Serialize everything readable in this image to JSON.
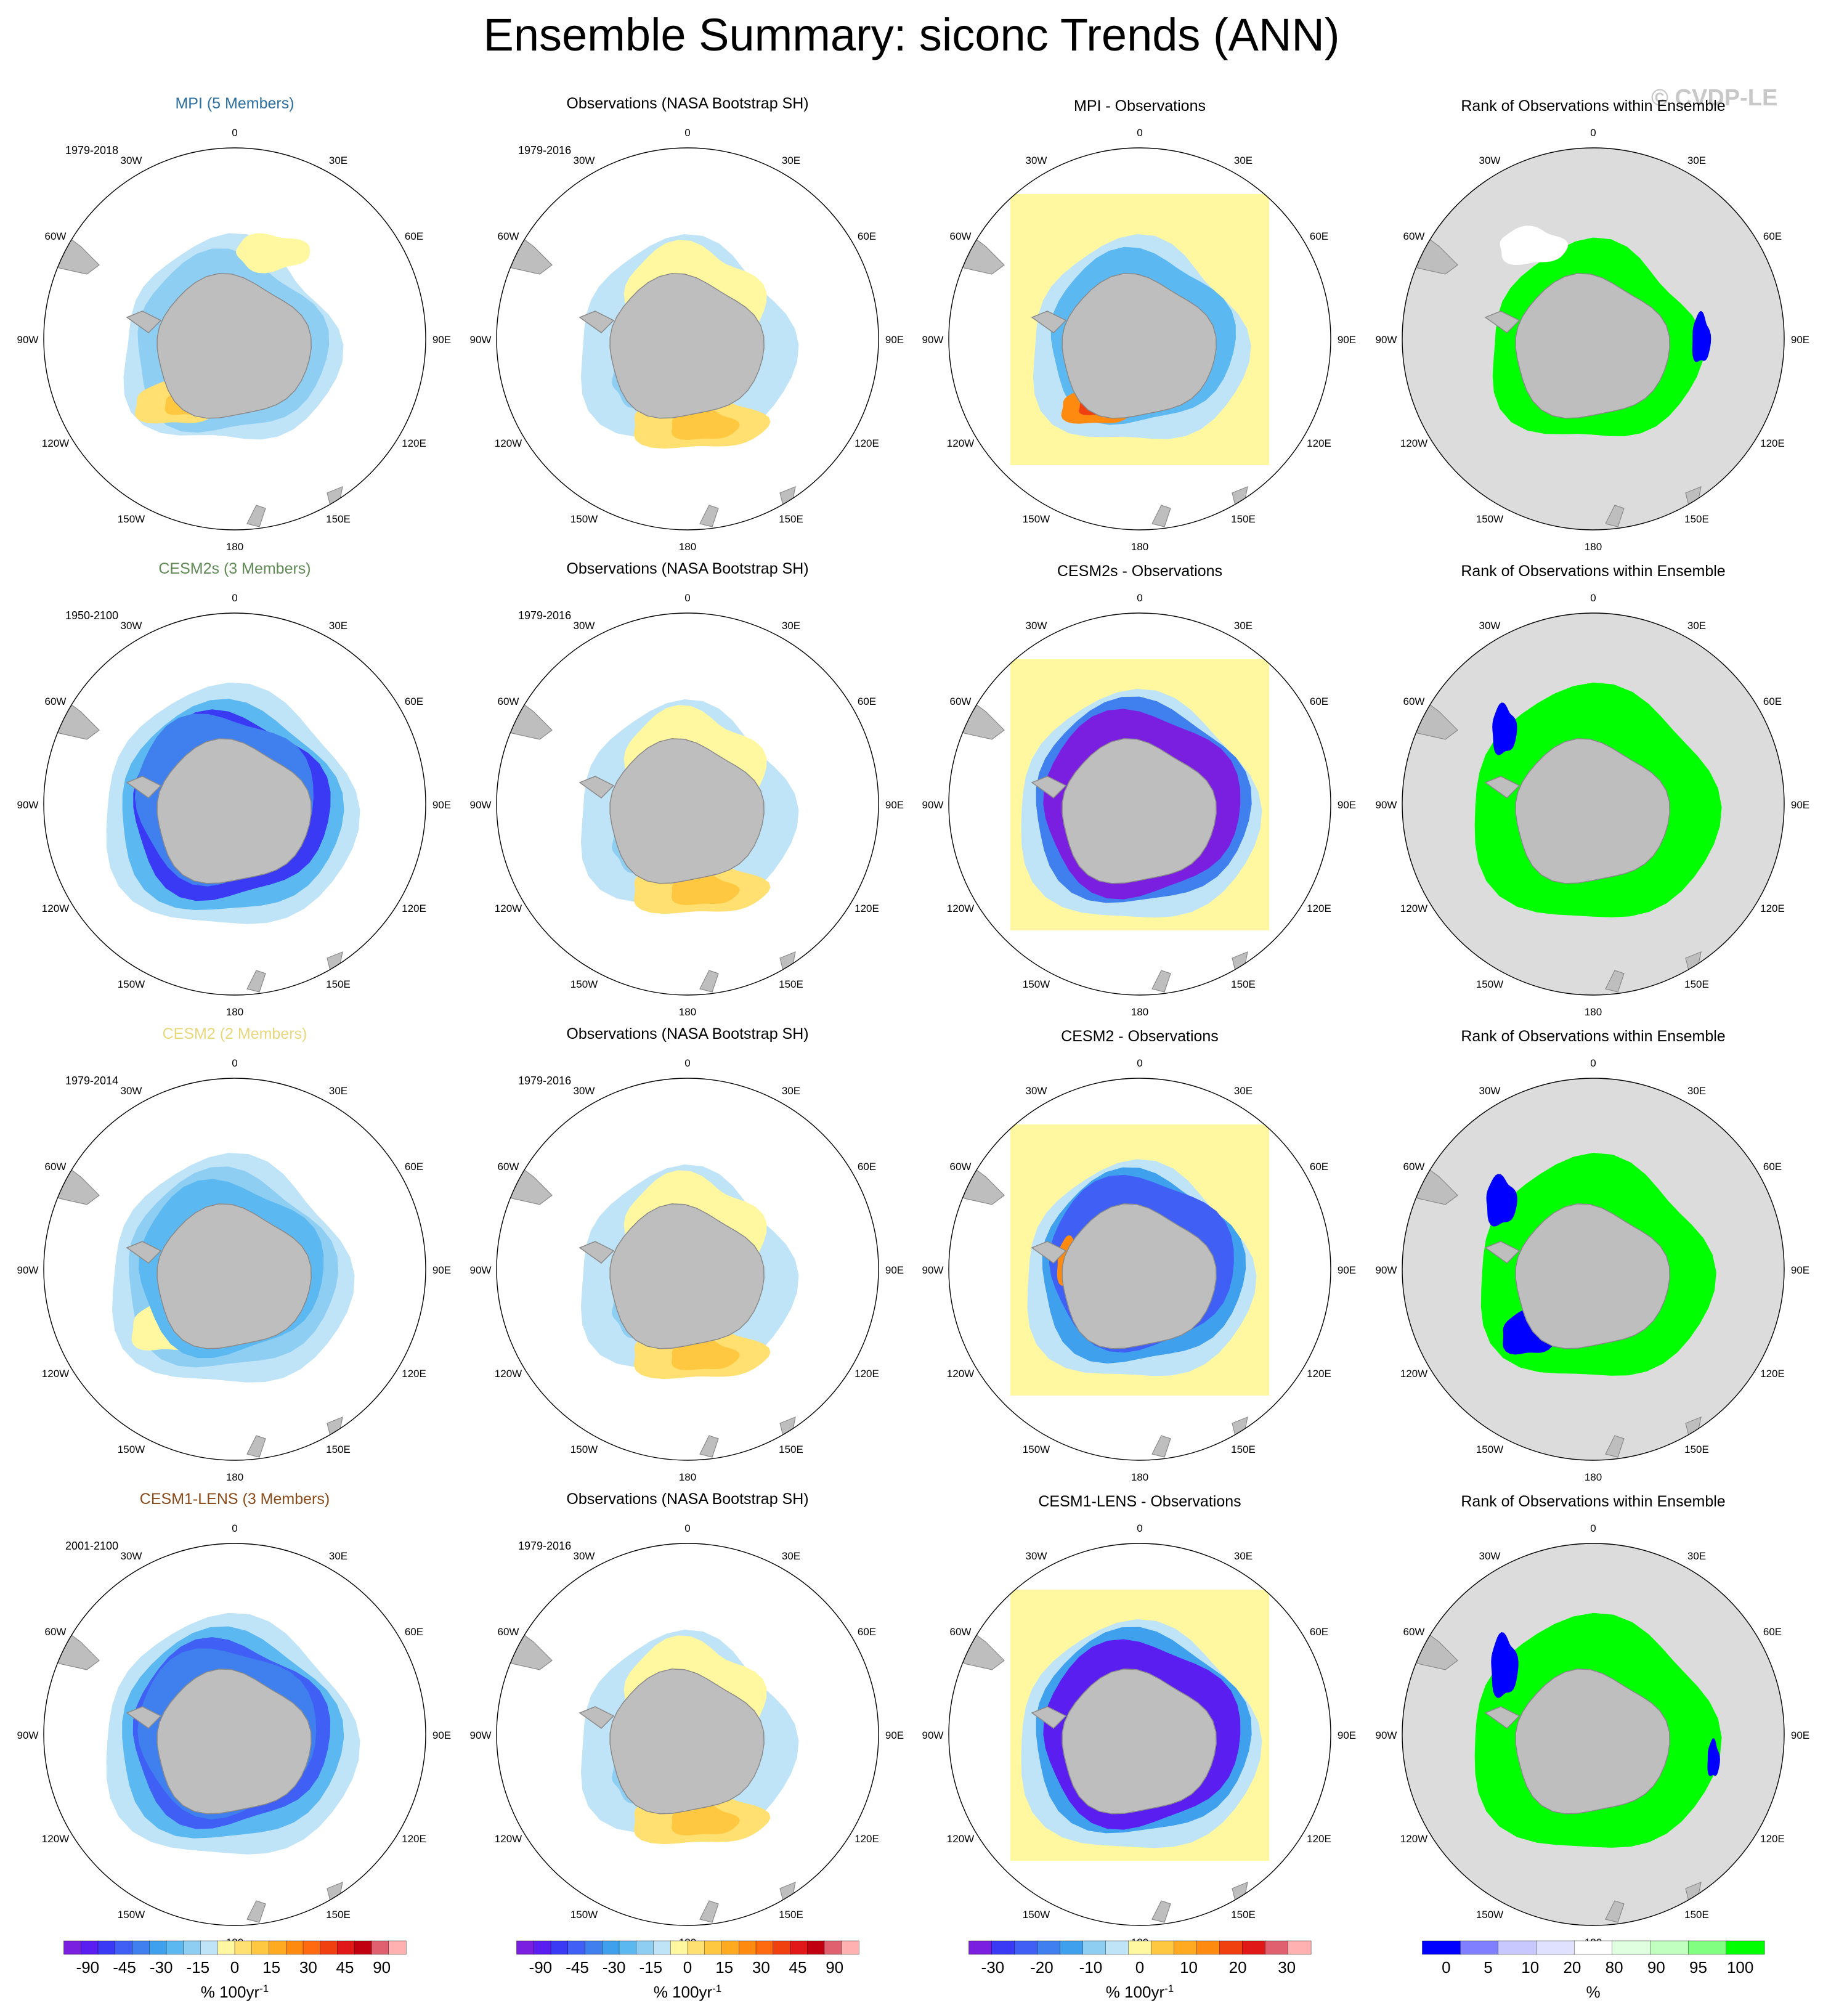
{
  "title": "Ensemble Summary: siconc Trends (ANN)",
  "watermark": "© CVDP-LE",
  "colors": {
    "land": "#bebebe",
    "rank_background": "#dcdcdc",
    "mpi_title": "#2b6fa3",
    "cesm2s_title": "#5f8a55",
    "cesm2_title": "#e8d77c",
    "cesm1_title": "#8a4a1a"
  },
  "chart_data": {
    "type": "heatmap",
    "map_projection": "south polar stereographic",
    "longitude_labels": [
      "0",
      "30E",
      "60E",
      "90E",
      "120E",
      "150E",
      "180",
      "150W",
      "120W",
      "90W",
      "60W",
      "30W"
    ],
    "rows": [
      {
        "model_title": "MPI (5 Members)",
        "model_title_color": "#2b6fa3",
        "model_period": "1979-2018",
        "obs_title": "Observations (NASA Bootstrap SH)",
        "obs_period": "1979-2016",
        "diff_title": "MPI - Observations",
        "rank_title": "Rank of Observations within Ensemble",
        "model_pattern": "mpi",
        "diff_pattern": "mpi",
        "rank_pattern": "mpi"
      },
      {
        "model_title": "CESM2s (3 Members)",
        "model_title_color": "#5f8a55",
        "model_period": "1950-2100",
        "obs_title": "Observations (NASA Bootstrap SH)",
        "obs_period": "1979-2016",
        "diff_title": "CESM2s - Observations",
        "rank_title": "Rank of Observations within Ensemble",
        "model_pattern": "cesm2s",
        "diff_pattern": "cesm2s",
        "rank_pattern": "cesm2s"
      },
      {
        "model_title": "CESM2 (2 Members)",
        "model_title_color": "#e8d77c",
        "model_period": "1979-2014",
        "obs_title": "Observations (NASA Bootstrap SH)",
        "obs_period": "1979-2016",
        "diff_title": "CESM2 - Observations",
        "rank_title": "Rank of Observations within Ensemble",
        "model_pattern": "cesm2",
        "diff_pattern": "cesm2",
        "rank_pattern": "cesm2"
      },
      {
        "model_title": "CESM1-LENS (3 Members)",
        "model_title_color": "#8a4a1a",
        "model_period": "2001-2100",
        "obs_title": "Observations (NASA Bootstrap SH)",
        "obs_period": "1979-2016",
        "diff_title": "CESM1-LENS - Observations",
        "rank_title": "Rank of Observations within Ensemble",
        "model_pattern": "cesm1",
        "diff_pattern": "cesm1",
        "rank_pattern": "cesm1"
      }
    ],
    "colorbars": [
      {
        "tick_labels": [
          "-90",
          "-45",
          "-30",
          "-15",
          "0",
          "15",
          "30",
          "45",
          "90"
        ],
        "units": "% 100yr",
        "units_sup": "-1",
        "colors": [
          "#7a1fe0",
          "#5a1ff0",
          "#3a3af5",
          "#3f5ff5",
          "#4080ee",
          "#3fa0ee",
          "#5cb8f0",
          "#8fcef3",
          "#bfe3f7",
          "#fff8a0",
          "#ffe070",
          "#ffc840",
          "#ffaa20",
          "#ff8a10",
          "#ff6a10",
          "#f04010",
          "#e01818",
          "#c00010",
          "#e06070",
          "#ffb0b0"
        ]
      },
      {
        "tick_labels": [
          "-90",
          "-45",
          "-30",
          "-15",
          "0",
          "15",
          "30",
          "45",
          "90"
        ],
        "units": "% 100yr",
        "units_sup": "-1",
        "colors": [
          "#7a1fe0",
          "#5a1ff0",
          "#3a3af5",
          "#3f5ff5",
          "#4080ee",
          "#3fa0ee",
          "#5cb8f0",
          "#8fcef3",
          "#bfe3f7",
          "#fff8a0",
          "#ffe070",
          "#ffc840",
          "#ffaa20",
          "#ff8a10",
          "#ff6a10",
          "#f04010",
          "#e01818",
          "#c00010",
          "#e06070",
          "#ffb0b0"
        ]
      },
      {
        "tick_labels": [
          "-30",
          "-20",
          "-10",
          "0",
          "10",
          "20",
          "30"
        ],
        "units": "% 100yr",
        "units_sup": "-1",
        "colors": [
          "#7a1fe0",
          "#3a3af5",
          "#3f5ff5",
          "#4080ee",
          "#3fa0ee",
          "#8fcef3",
          "#bfe3f7",
          "#fff8a0",
          "#ffc840",
          "#ffaa20",
          "#ff8a10",
          "#f04010",
          "#e01818",
          "#e06070",
          "#ffb0b0"
        ]
      },
      {
        "tick_labels": [
          "0",
          "5",
          "10",
          "20",
          "80",
          "90",
          "95",
          "100"
        ],
        "units": "%",
        "units_sup": "",
        "colors": [
          "#0000ff",
          "#7f7fff",
          "#c8c8ff",
          "#e0e0ff",
          "#ffffff",
          "#e0ffe0",
          "#c0ffc0",
          "#80ff80",
          "#00ff00"
        ]
      }
    ]
  }
}
